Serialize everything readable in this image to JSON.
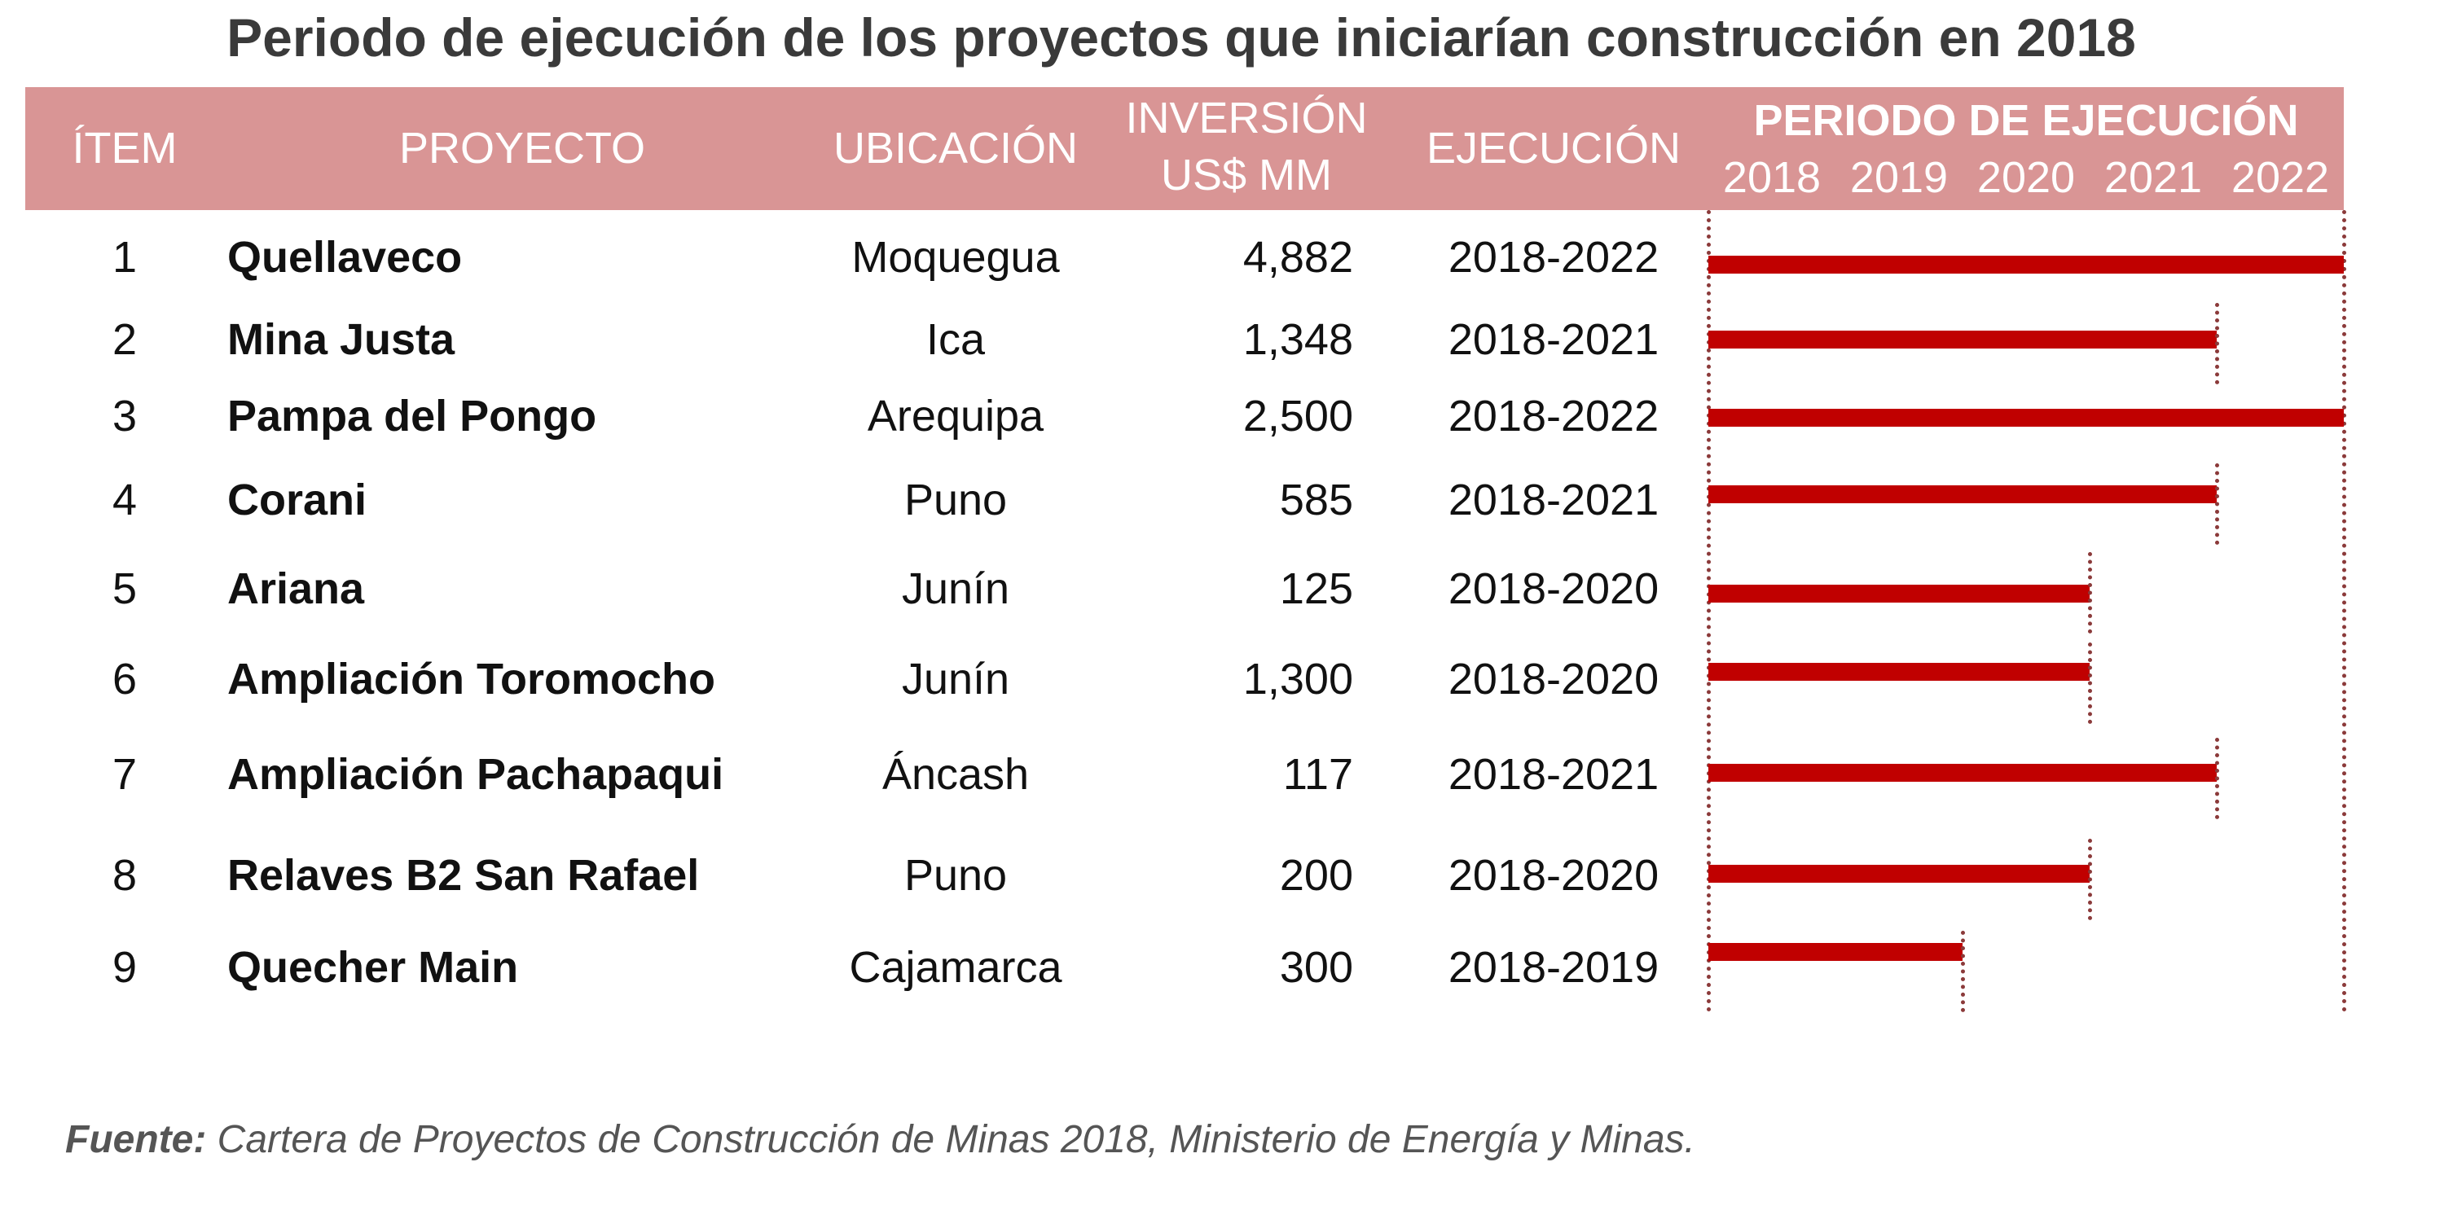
{
  "title": "Periodo de ejecución de los proyectos que iniciarían construcción en 2018",
  "header": {
    "item": "ÍTEM",
    "proyecto": "PROYECTO",
    "ubicacion": "UBICACIÓN",
    "inversion_line1": "INVERSIÓN",
    "inversion_line2": "US$ MM",
    "ejecucion": "EJECUCIÓN",
    "periodo": "PERIODO DE EJECUCIÓN",
    "years": [
      "2018",
      "2019",
      "2020",
      "2021",
      "2022"
    ]
  },
  "colors": {
    "header_bg": "#d99595",
    "bar": "#c00000",
    "gridline": "#8b3a3a"
  },
  "rows": [
    {
      "item": "1",
      "proyecto": "Quellaveco",
      "ubicacion": "Moquegua",
      "inversion": "4,882",
      "ejecucion": "2018-2022",
      "start": 2018,
      "end": 2022
    },
    {
      "item": "2",
      "proyecto": "Mina Justa",
      "ubicacion": "Ica",
      "inversion": "1,348",
      "ejecucion": "2018-2021",
      "start": 2018,
      "end": 2021
    },
    {
      "item": "3",
      "proyecto": "Pampa del Pongo",
      "ubicacion": "Arequipa",
      "inversion": "2,500",
      "ejecucion": "2018-2022",
      "start": 2018,
      "end": 2022
    },
    {
      "item": "4",
      "proyecto": "Corani",
      "ubicacion": "Puno",
      "inversion": "585",
      "ejecucion": "2018-2021",
      "start": 2018,
      "end": 2021
    },
    {
      "item": "5",
      "proyecto": "Ariana",
      "ubicacion": "Junín",
      "inversion": "125",
      "ejecucion": "2018-2020",
      "start": 2018,
      "end": 2020
    },
    {
      "item": "6",
      "proyecto": "Ampliación Toromocho",
      "ubicacion": "Junín",
      "inversion": "1,300",
      "ejecucion": "2018-2020",
      "start": 2018,
      "end": 2020
    },
    {
      "item": "7",
      "proyecto": "Ampliación Pachapaqui",
      "ubicacion": "Áncash",
      "inversion": "117",
      "ejecucion": "2018-2021",
      "start": 2018,
      "end": 2021
    },
    {
      "item": "8",
      "proyecto": "Relaves B2 San Rafael",
      "ubicacion": "Puno",
      "inversion": "200",
      "ejecucion": "2018-2020",
      "start": 2018,
      "end": 2020
    },
    {
      "item": "9",
      "proyecto": "Quecher Main",
      "ubicacion": "Cajamarca",
      "inversion": "300",
      "ejecucion": "2018-2019",
      "start": 2018,
      "end": 2019
    }
  ],
  "footnote": {
    "label": "Fuente:",
    "text": " Cartera de Proyectos de Construcción de Minas 2018, Ministerio de Energía y Minas."
  }
}
